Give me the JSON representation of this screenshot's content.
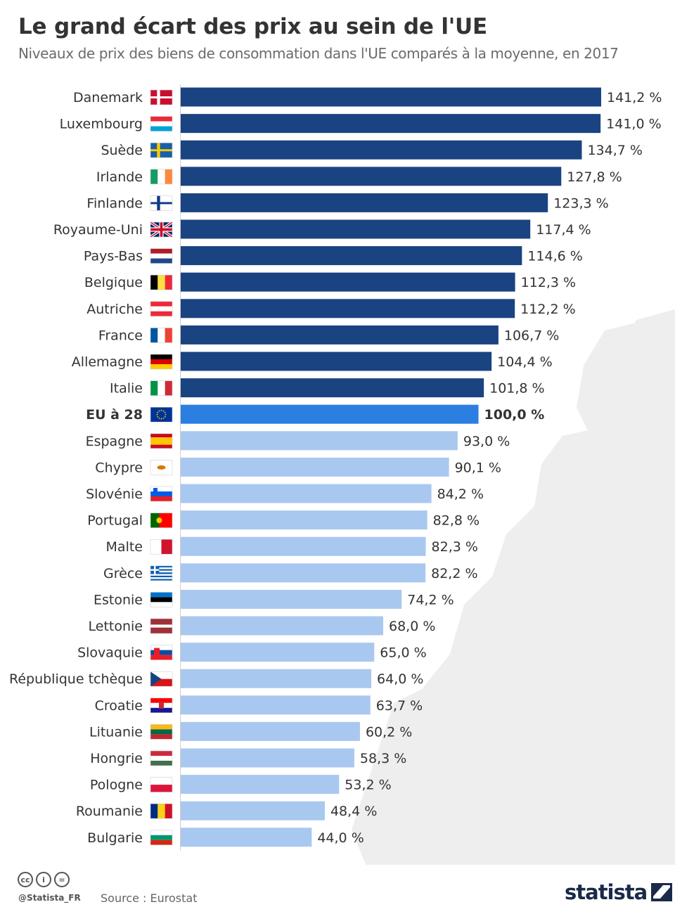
{
  "header": {
    "title": "Le grand écart des prix au sein de l'UE",
    "subtitle": "Niveaux de prix des biens de consommation dans l'UE comparés à la moyenne, en 2017"
  },
  "footer": {
    "cc_labels": [
      "cc",
      "i",
      "="
    ],
    "handle": "@Statista_FR",
    "source": "Source : Eurostat",
    "brand": "statista"
  },
  "colors": {
    "above_average": "#1a4382",
    "average": "#2b7fe0",
    "below_average": "#a9c8f0",
    "map": "#eeeeee"
  },
  "chart_data": {
    "type": "bar",
    "orientation": "horizontal",
    "xlim": [
      0,
      141.2
    ],
    "value_suffix": " %",
    "decimal_separator": ",",
    "highlight": "EU à 28",
    "categories": [
      {
        "name": "Danemark",
        "value": 141.2,
        "flag": "denmark"
      },
      {
        "name": "Luxembourg",
        "value": 141.0,
        "flag": "luxembourg"
      },
      {
        "name": "Suède",
        "value": 134.7,
        "flag": "sweden"
      },
      {
        "name": "Irlande",
        "value": 127.8,
        "flag": "ireland"
      },
      {
        "name": "Finlande",
        "value": 123.3,
        "flag": "finland"
      },
      {
        "name": "Royaume-Uni",
        "value": 117.4,
        "flag": "uk"
      },
      {
        "name": "Pays-Bas",
        "value": 114.6,
        "flag": "netherlands"
      },
      {
        "name": "Belgique",
        "value": 112.3,
        "flag": "belgium"
      },
      {
        "name": "Autriche",
        "value": 112.2,
        "flag": "austria"
      },
      {
        "name": "France",
        "value": 106.7,
        "flag": "france"
      },
      {
        "name": "Allemagne",
        "value": 104.4,
        "flag": "germany"
      },
      {
        "name": "Italie",
        "value": 101.8,
        "flag": "italy"
      },
      {
        "name": "EU à 28",
        "value": 100.0,
        "flag": "eu"
      },
      {
        "name": "Espagne",
        "value": 93.0,
        "flag": "spain"
      },
      {
        "name": "Chypre",
        "value": 90.1,
        "flag": "cyprus"
      },
      {
        "name": "Slovénie",
        "value": 84.2,
        "flag": "slovenia"
      },
      {
        "name": "Portugal",
        "value": 82.8,
        "flag": "portugal"
      },
      {
        "name": "Malte",
        "value": 82.3,
        "flag": "malta"
      },
      {
        "name": "Grèce",
        "value": 82.2,
        "flag": "greece"
      },
      {
        "name": "Estonie",
        "value": 74.2,
        "flag": "estonia"
      },
      {
        "name": "Lettonie",
        "value": 68.0,
        "flag": "latvia"
      },
      {
        "name": "Slovaquie",
        "value": 65.0,
        "flag": "slovakia"
      },
      {
        "name": "République tchèque",
        "value": 64.0,
        "flag": "czechia"
      },
      {
        "name": "Croatie",
        "value": 63.7,
        "flag": "croatia"
      },
      {
        "name": "Lituanie",
        "value": 60.2,
        "flag": "lithuania"
      },
      {
        "name": "Hongrie",
        "value": 58.3,
        "flag": "hungary"
      },
      {
        "name": "Pologne",
        "value": 53.2,
        "flag": "poland"
      },
      {
        "name": "Roumanie",
        "value": 48.4,
        "flag": "romania"
      },
      {
        "name": "Bulgarie",
        "value": 44.0,
        "flag": "bulgaria"
      }
    ]
  }
}
